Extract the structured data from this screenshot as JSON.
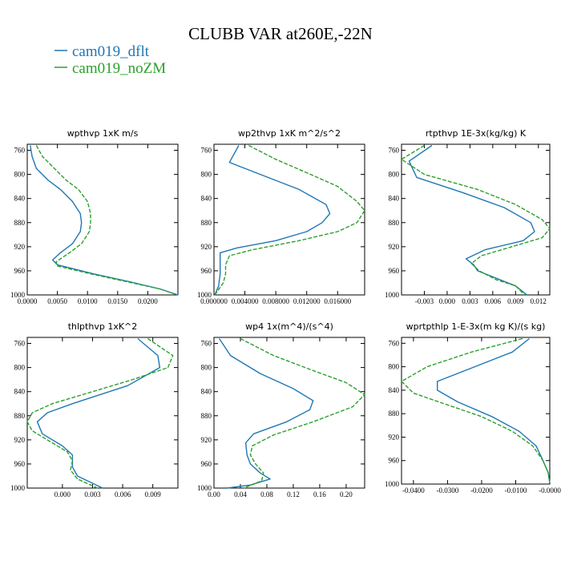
{
  "figure": {
    "title": "CLUBB VAR at260E,-22N",
    "legend": [
      {
        "label": "cam019_dflt",
        "color": "#1f77b4",
        "dash": "solid"
      },
      {
        "label": "cam019_noZM",
        "color": "#2ca02c",
        "dash": "dashed"
      }
    ]
  },
  "chart_data": [
    {
      "type": "line",
      "title": "wpthvp   1xK m/s",
      "ylim": [
        1000,
        750
      ],
      "y_ticks": [
        760,
        800,
        840,
        880,
        920,
        960,
        1000
      ],
      "xlim": [
        0,
        0.025
      ],
      "x_ticks": [
        0,
        0.005,
        0.01,
        0.015,
        0.02
      ],
      "x_tick_labels": [
        "0.0000",
        "0.0050",
        "0.0100",
        "0.0150",
        "0.0200"
      ],
      "series": [
        {
          "name": "cam019_dflt",
          "points": [
            [
              0.0005,
              752
            ],
            [
              0.0008,
              770
            ],
            [
              0.0015,
              790
            ],
            [
              0.0035,
              810
            ],
            [
              0.0055,
              825
            ],
            [
              0.0075,
              845
            ],
            [
              0.0088,
              865
            ],
            [
              0.009,
              880
            ],
            [
              0.0088,
              895
            ],
            [
              0.0075,
              915
            ],
            [
              0.0055,
              930
            ],
            [
              0.0042,
              942
            ],
            [
              0.005,
              950
            ],
            [
              0.011,
              965
            ],
            [
              0.017,
              978
            ],
            [
              0.022,
              990
            ],
            [
              0.025,
              1000
            ]
          ]
        },
        {
          "name": "cam019_noZM",
          "points": [
            [
              0.0015,
              752
            ],
            [
              0.0025,
              770
            ],
            [
              0.0045,
              790
            ],
            [
              0.0065,
              810
            ],
            [
              0.0085,
              825
            ],
            [
              0.01,
              845
            ],
            [
              0.0105,
              865
            ],
            [
              0.0105,
              880
            ],
            [
              0.0103,
              895
            ],
            [
              0.009,
              915
            ],
            [
              0.007,
              930
            ],
            [
              0.0048,
              945
            ],
            [
              0.005,
              952
            ],
            [
              0.0105,
              965
            ],
            [
              0.0165,
              978
            ],
            [
              0.022,
              990
            ],
            [
              0.025,
              1000
            ]
          ]
        }
      ]
    },
    {
      "type": "line",
      "title": "wp2thvp   1xK m^2/s^2",
      "ylim": [
        1000,
        750
      ],
      "y_ticks": [
        760,
        800,
        840,
        880,
        920,
        960,
        1000
      ],
      "xlim": [
        0,
        0.0195
      ],
      "x_ticks": [
        0,
        0.004,
        0.008,
        0.012,
        0.016
      ],
      "x_tick_labels": [
        "0.000000",
        "0.004000",
        "0.008000",
        "0.012000",
        "0.016000"
      ],
      "series": [
        {
          "name": "cam019_dflt",
          "points": [
            [
              0.0032,
              752
            ],
            [
              0.002,
              780
            ],
            [
              0.006,
              800
            ],
            [
              0.011,
              825
            ],
            [
              0.0145,
              850
            ],
            [
              0.015,
              865
            ],
            [
              0.014,
              880
            ],
            [
              0.012,
              895
            ],
            [
              0.008,
              910
            ],
            [
              0.003,
              922
            ],
            [
              0.0008,
              930
            ],
            [
              0.0008,
              945
            ],
            [
              0.0008,
              965
            ],
            [
              0.0006,
              985
            ],
            [
              0.0001,
              1000
            ]
          ]
        },
        {
          "name": "cam019_noZM",
          "points": [
            [
              0.0045,
              752
            ],
            [
              0.008,
              775
            ],
            [
              0.0125,
              800
            ],
            [
              0.016,
              820
            ],
            [
              0.0185,
              845
            ],
            [
              0.0195,
              860
            ],
            [
              0.0185,
              880
            ],
            [
              0.016,
              895
            ],
            [
              0.011,
              910
            ],
            [
              0.005,
              925
            ],
            [
              0.002,
              935
            ],
            [
              0.0015,
              950
            ],
            [
              0.0015,
              965
            ],
            [
              0.0012,
              980
            ],
            [
              0.0001,
              1000
            ]
          ]
        }
      ]
    },
    {
      "type": "line",
      "title": "rtpthvp   1E-3x(kg/kg) K",
      "ylim": [
        1000,
        750
      ],
      "y_ticks": [
        760,
        800,
        840,
        880,
        920,
        960,
        1000
      ],
      "xlim": [
        -0.006,
        0.0135
      ],
      "x_ticks": [
        -0.003,
        0,
        0.003,
        0.006,
        0.009,
        0.012
      ],
      "x_tick_labels": [
        "-0.003",
        "0.000",
        "0.003",
        "0.006",
        "0.009",
        "0.012"
      ],
      "series": [
        {
          "name": "cam019_dflt",
          "points": [
            [
              -0.002,
              752
            ],
            [
              -0.005,
              778
            ],
            [
              -0.004,
              805
            ],
            [
              0.002,
              830
            ],
            [
              0.0075,
              855
            ],
            [
              0.011,
              880
            ],
            [
              0.0115,
              895
            ],
            [
              0.01,
              910
            ],
            [
              0.005,
              925
            ],
            [
              0.0025,
              940
            ],
            [
              0.0035,
              950
            ],
            [
              0.004,
              960
            ],
            [
              0.007,
              975
            ],
            [
              0.009,
              985
            ],
            [
              0.0105,
              1000
            ]
          ]
        },
        {
          "name": "cam019_noZM",
          "points": [
            [
              -0.003,
              752
            ],
            [
              -0.006,
              775
            ],
            [
              -0.003,
              800
            ],
            [
              0.004,
              825
            ],
            [
              0.009,
              850
            ],
            [
              0.0125,
              875
            ],
            [
              0.0135,
              890
            ],
            [
              0.0125,
              905
            ],
            [
              0.008,
              922
            ],
            [
              0.0045,
              935
            ],
            [
              0.0032,
              948
            ],
            [
              0.0042,
              960
            ],
            [
              0.0065,
              975
            ],
            [
              0.009,
              985
            ],
            [
              0.0102,
              1000
            ]
          ]
        }
      ]
    },
    {
      "type": "line",
      "title": "thlpthvp   1xK^2",
      "ylim": [
        1000,
        750
      ],
      "y_ticks": [
        760,
        800,
        840,
        880,
        920,
        960,
        1000
      ],
      "xlim": [
        -0.0035,
        0.0115
      ],
      "x_ticks": [
        0,
        0.003,
        0.006,
        0.009
      ],
      "x_tick_labels": [
        "0.000",
        "0.003",
        "0.006",
        "0.009"
      ],
      "series": [
        {
          "name": "cam019_dflt",
          "points": [
            [
              0.0075,
              752
            ],
            [
              0.0095,
              780
            ],
            [
              0.0097,
              800
            ],
            [
              0.0065,
              830
            ],
            [
              0.001,
              860
            ],
            [
              -0.0015,
              875
            ],
            [
              -0.0025,
              890
            ],
            [
              -0.002,
              910
            ],
            [
              0,
              930
            ],
            [
              0.001,
              945
            ],
            [
              0.001,
              965
            ],
            [
              0.0015,
              980
            ],
            [
              0.004,
              1000
            ]
          ]
        },
        {
          "name": "cam019_noZM",
          "points": [
            [
              0.0085,
              752
            ],
            [
              0.011,
              780
            ],
            [
              0.0105,
              800
            ],
            [
              0.007,
              820
            ],
            [
              0.003,
              840
            ],
            [
              -0.001,
              860
            ],
            [
              -0.003,
              875
            ],
            [
              -0.0035,
              890
            ],
            [
              -0.003,
              905
            ],
            [
              -0.001,
              925
            ],
            [
              0.0005,
              940
            ],
            [
              0.001,
              955
            ],
            [
              0.0008,
              970
            ],
            [
              0.0015,
              985
            ],
            [
              0.0035,
              1000
            ]
          ]
        }
      ]
    },
    {
      "type": "line",
      "title": "wp4   1x(m^4)/(s^4)",
      "ylim": [
        1000,
        750
      ],
      "y_ticks": [
        760,
        800,
        840,
        880,
        920,
        960,
        1000
      ],
      "xlim": [
        0,
        0.228
      ],
      "x_ticks": [
        0,
        0.04,
        0.08,
        0.12,
        0.16,
        0.2
      ],
      "x_tick_labels": [
        "0.00",
        "0.04",
        "0.08",
        "0.12",
        "0.16",
        "0.20"
      ],
      "series": [
        {
          "name": "cam019_dflt",
          "points": [
            [
              0.008,
              752
            ],
            [
              0.025,
              780
            ],
            [
              0.07,
              810
            ],
            [
              0.12,
              835
            ],
            [
              0.15,
              855
            ],
            [
              0.145,
              870
            ],
            [
              0.11,
              890
            ],
            [
              0.06,
              910
            ],
            [
              0.048,
              925
            ],
            [
              0.05,
              945
            ],
            [
              0.055,
              960
            ],
            [
              0.07,
              975
            ],
            [
              0.085,
              985
            ],
            [
              0.055,
              995
            ],
            [
              0.02,
              1000
            ]
          ]
        },
        {
          "name": "cam019_noZM",
          "points": [
            [
              0.04,
              752
            ],
            [
              0.09,
              780
            ],
            [
              0.15,
              805
            ],
            [
              0.2,
              825
            ],
            [
              0.228,
              845
            ],
            [
              0.21,
              865
            ],
            [
              0.15,
              890
            ],
            [
              0.09,
              912
            ],
            [
              0.058,
              930
            ],
            [
              0.055,
              945
            ],
            [
              0.063,
              960
            ],
            [
              0.075,
              975
            ],
            [
              0.072,
              988
            ],
            [
              0.045,
              1000
            ]
          ]
        }
      ]
    },
    {
      "type": "line",
      "title": "wprtpthlp   1-E-3x(m kg K)/(s kg)",
      "ylim": [
        1000,
        750
      ],
      "y_ticks": [
        760,
        800,
        840,
        880,
        920,
        960,
        1000
      ],
      "xlim": [
        -0.0435,
        0
      ],
      "x_ticks": [
        -0.04,
        -0.03,
        -0.02,
        -0.01,
        0
      ],
      "x_tick_labels": [
        "-0.0400",
        "-0.0300",
        "-0.0200",
        "-0.0100",
        "-0.0000"
      ],
      "series": [
        {
          "name": "cam019_dflt",
          "points": [
            [
              -0.006,
              752
            ],
            [
              -0.011,
              775
            ],
            [
              -0.022,
              800
            ],
            [
              -0.033,
              825
            ],
            [
              -0.033,
              840
            ],
            [
              -0.027,
              860
            ],
            [
              -0.017,
              885
            ],
            [
              -0.009,
              910
            ],
            [
              -0.004,
              935
            ],
            [
              -0.002,
              960
            ],
            [
              -0.0005,
              980
            ],
            [
              0,
              998
            ]
          ]
        },
        {
          "name": "cam019_noZM",
          "points": [
            [
              -0.008,
              752
            ],
            [
              -0.023,
              775
            ],
            [
              -0.036,
              800
            ],
            [
              -0.0435,
              825
            ],
            [
              -0.04,
              845
            ],
            [
              -0.03,
              865
            ],
            [
              -0.02,
              885
            ],
            [
              -0.011,
              910
            ],
            [
              -0.005,
              935
            ],
            [
              -0.002,
              960
            ],
            [
              -0.0005,
              980
            ],
            [
              0,
              998
            ]
          ]
        }
      ]
    }
  ]
}
